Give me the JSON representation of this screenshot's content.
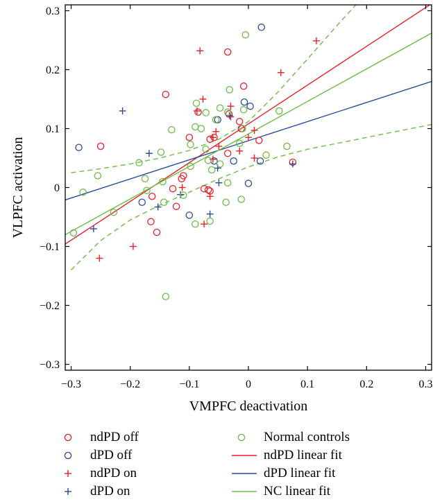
{
  "chart_data": {
    "type": "scatter",
    "title": "",
    "xlabel": "VMPFC deactivation",
    "ylabel": "VLPFC activation",
    "xlim": [
      -0.31,
      0.31
    ],
    "ylim": [
      -0.31,
      0.31
    ],
    "xticks": [
      -0.3,
      -0.2,
      -0.1,
      0,
      0.1,
      0.2,
      0.3
    ],
    "xtick_labels": [
      "−0.3",
      "−0.2",
      "−0.1",
      "0",
      "0.1",
      "0.2",
      "0.3"
    ],
    "yticks": [
      -0.3,
      -0.2,
      -0.1,
      0,
      0.1,
      0.2,
      0.3
    ],
    "ytick_labels": [
      "−0.3",
      "−0.2",
      "−0.1",
      "0",
      "0.1",
      "0.2",
      "0.3"
    ],
    "grid": false,
    "legend_position": "bottom",
    "colors": {
      "red": "#e8202a",
      "blue": "#2a4a9c",
      "green": "#6cbd45"
    },
    "series": [
      {
        "name": "ndPD off",
        "marker": "circle",
        "color": "#e8202a",
        "points": [
          [
            -0.25,
            0.07
          ],
          [
            -0.14,
            0.158
          ],
          [
            -0.035,
            0.23
          ],
          [
            -0.008,
            0.172
          ],
          [
            -0.1,
            0.085
          ],
          [
            -0.085,
            0.128
          ],
          [
            -0.065,
            0.082
          ],
          [
            -0.058,
            0.085
          ],
          [
            -0.033,
            0.125
          ],
          [
            -0.015,
            0.112
          ],
          [
            -0.012,
            0.1
          ],
          [
            -0.11,
            0.02
          ],
          [
            -0.113,
            0.015
          ],
          [
            -0.128,
            -0.002
          ],
          [
            -0.075,
            -0.002
          ],
          [
            -0.068,
            -0.004
          ],
          [
            -0.065,
            -0.006
          ],
          [
            -0.122,
            -0.032
          ],
          [
            -0.163,
            -0.015
          ],
          [
            -0.165,
            -0.058
          ],
          [
            -0.155,
            -0.076
          ],
          [
            -0.035,
            0.058
          ],
          [
            0.018,
            0.08
          ],
          [
            0.075,
            0.043
          ]
        ]
      },
      {
        "name": "dPD off",
        "marker": "circle",
        "color": "#2a4a9c",
        "points": [
          [
            -0.287,
            0.068
          ],
          [
            0.022,
            0.272
          ],
          [
            -0.007,
            0.145
          ],
          [
            0.003,
            0.138
          ],
          [
            -0.052,
            0.115
          ],
          [
            -0.058,
            0.045
          ],
          [
            -0.1,
            -0.047
          ],
          [
            -0.18,
            -0.025
          ],
          [
            0.0,
            0.007
          ],
          [
            0.02,
            0.045
          ],
          [
            -0.025,
            0.045
          ]
        ]
      },
      {
        "name": "ndPD on",
        "marker": "plus",
        "color": "#e8202a",
        "points": [
          [
            -0.082,
            0.232
          ],
          [
            0.115,
            0.249
          ],
          [
            0.055,
            0.195
          ],
          [
            -0.077,
            0.15
          ],
          [
            -0.087,
            0.13
          ],
          [
            -0.03,
            0.138
          ],
          [
            -0.055,
            0.095
          ],
          [
            -0.05,
            0.07
          ],
          [
            -0.06,
            0.085
          ],
          [
            -0.015,
            0.062
          ],
          [
            0.0,
            0.085
          ],
          [
            0.01,
            0.097
          ],
          [
            0.01,
            0.05
          ],
          [
            -0.112,
            0.0
          ],
          [
            -0.075,
            -0.062
          ],
          [
            -0.065,
            -0.015
          ],
          [
            -0.195,
            -0.1
          ],
          [
            -0.252,
            -0.12
          ],
          [
            -0.06,
            0.048
          ],
          [
            -0.03,
            0.12
          ]
        ]
      },
      {
        "name": "dPD on",
        "marker": "plus",
        "color": "#2a4a9c",
        "points": [
          [
            -0.213,
            0.13
          ],
          [
            -0.168,
            0.058
          ],
          [
            -0.262,
            -0.07
          ],
          [
            -0.153,
            -0.033
          ],
          [
            -0.115,
            -0.012
          ],
          [
            -0.052,
            0.033
          ],
          [
            -0.05,
            0.008
          ],
          [
            -0.065,
            -0.045
          ],
          [
            -0.032,
            0.122
          ],
          [
            0.075,
            0.04
          ]
        ]
      },
      {
        "name": "Normal controls",
        "marker": "circle",
        "color": "#6cbd45",
        "points": [
          [
            -0.005,
            0.259
          ],
          [
            -0.032,
            0.166
          ],
          [
            -0.088,
            0.143
          ],
          [
            -0.072,
            0.127
          ],
          [
            -0.055,
            0.115
          ],
          [
            -0.09,
            0.103
          ],
          [
            -0.08,
            0.1
          ],
          [
            -0.13,
            0.098
          ],
          [
            -0.008,
            0.132
          ],
          [
            0.052,
            0.13
          ],
          [
            -0.01,
            0.1
          ],
          [
            -0.048,
            0.135
          ],
          [
            -0.035,
            0.128
          ],
          [
            -0.098,
            0.073
          ],
          [
            -0.148,
            0.06
          ],
          [
            -0.185,
            0.042
          ],
          [
            -0.072,
            0.065
          ],
          [
            -0.068,
            0.046
          ],
          [
            -0.062,
            0.03
          ],
          [
            -0.048,
            0.04
          ],
          [
            -0.015,
            0.075
          ],
          [
            0.065,
            0.07
          ],
          [
            -0.175,
            0.015
          ],
          [
            -0.145,
            0.01
          ],
          [
            -0.098,
            0.036
          ],
          [
            -0.255,
            0.02
          ],
          [
            -0.28,
            -0.008
          ],
          [
            -0.172,
            -0.005
          ],
          [
            -0.11,
            -0.013
          ],
          [
            -0.038,
            -0.025
          ],
          [
            -0.012,
            -0.02
          ],
          [
            -0.035,
            0.008
          ],
          [
            -0.143,
            -0.025
          ],
          [
            -0.09,
            -0.062
          ],
          [
            -0.065,
            -0.057
          ],
          [
            -0.228,
            -0.042
          ],
          [
            -0.296,
            -0.077
          ],
          [
            -0.14,
            -0.185
          ],
          [
            0.03,
            0.055
          ]
        ]
      }
    ],
    "fits": [
      {
        "name": "ndPD linear fit",
        "color": "#e8202a",
        "dash": "solid",
        "x": [
          -0.31,
          0.31
        ],
        "y": [
          -0.096,
          0.312
        ]
      },
      {
        "name": "dPD linear fit",
        "color": "#2a4a9c",
        "dash": "solid",
        "x": [
          -0.31,
          0.31
        ],
        "y": [
          -0.021,
          0.18
        ]
      },
      {
        "name": "NC linear fit",
        "color": "#6cbd45",
        "dash": "solid",
        "x": [
          -0.31,
          0.31
        ],
        "y": [
          -0.08,
          0.262
        ]
      },
      {
        "name": "",
        "color": "#6cbd45",
        "dash": "dashed",
        "x": [
          -0.3,
          -0.25,
          -0.2,
          -0.15,
          -0.1,
          -0.05,
          0.0,
          0.05,
          0.1,
          0.15,
          0.2,
          0.25,
          0.31
        ],
        "y": [
          0.025,
          0.032,
          0.04,
          0.05,
          0.063,
          0.082,
          0.112,
          0.162,
          0.218,
          0.275,
          0.33,
          0.39,
          0.45
        ]
      },
      {
        "name": "",
        "color": "#6cbd45",
        "dash": "dashed",
        "x": [
          -0.3,
          -0.25,
          -0.2,
          -0.15,
          -0.1,
          -0.05,
          0.0,
          0.05,
          0.1,
          0.15,
          0.2,
          0.25,
          0.31
        ],
        "y": [
          -0.14,
          -0.09,
          -0.055,
          -0.03,
          -0.008,
          0.015,
          0.035,
          0.052,
          0.065,
          0.075,
          0.085,
          0.095,
          0.107
        ]
      }
    ]
  },
  "legend": {
    "items": [
      {
        "label": "ndPD off",
        "kind": "circle",
        "color": "#e8202a"
      },
      {
        "label": "dPD off",
        "kind": "circle",
        "color": "#2a4a9c"
      },
      {
        "label": "ndPD on",
        "kind": "plus",
        "color": "#e8202a"
      },
      {
        "label": "dPD on",
        "kind": "plus",
        "color": "#2a4a9c"
      },
      {
        "label": "Normal controls",
        "kind": "circle",
        "color": "#6cbd45"
      },
      {
        "label": "ndPD linear fit",
        "kind": "line",
        "color": "#e8202a"
      },
      {
        "label": "dPD linear fit",
        "kind": "line",
        "color": "#2a4a9c"
      },
      {
        "label": "NC linear fit",
        "kind": "line",
        "color": "#6cbd45"
      }
    ]
  }
}
